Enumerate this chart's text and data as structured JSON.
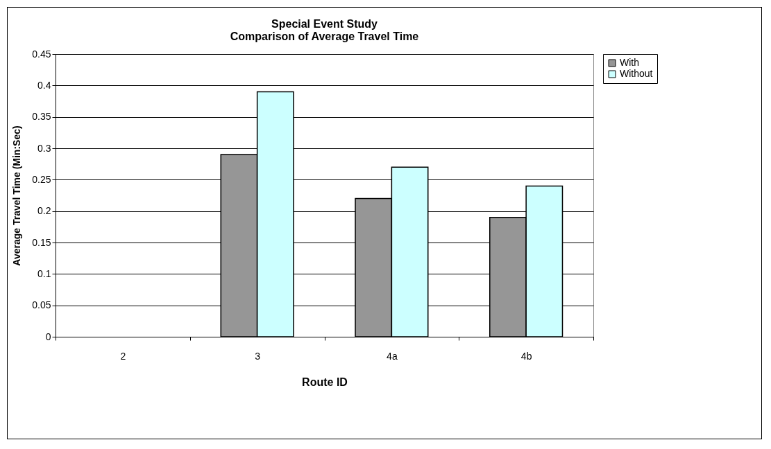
{
  "chart_data": {
    "type": "bar",
    "title": [
      "Special Event Study",
      "Comparison of Average Travel Time"
    ],
    "xlabel": "Route ID",
    "ylabel": "Average Travel Time (Min:Sec)",
    "categories": [
      "2",
      "3",
      "4a",
      "4b"
    ],
    "series": [
      {
        "name": "With",
        "color": "#969696",
        "values": [
          null,
          0.29,
          0.22,
          0.19
        ]
      },
      {
        "name": "Without",
        "color": "#ccffff",
        "values": [
          null,
          0.39,
          0.27,
          0.24
        ]
      }
    ],
    "ylim": [
      0,
      0.45
    ],
    "yticks": [
      0,
      0.05,
      0.1,
      0.15,
      0.2,
      0.25,
      0.3,
      0.35,
      0.4,
      0.45
    ],
    "grid": "y",
    "legend": "right"
  }
}
